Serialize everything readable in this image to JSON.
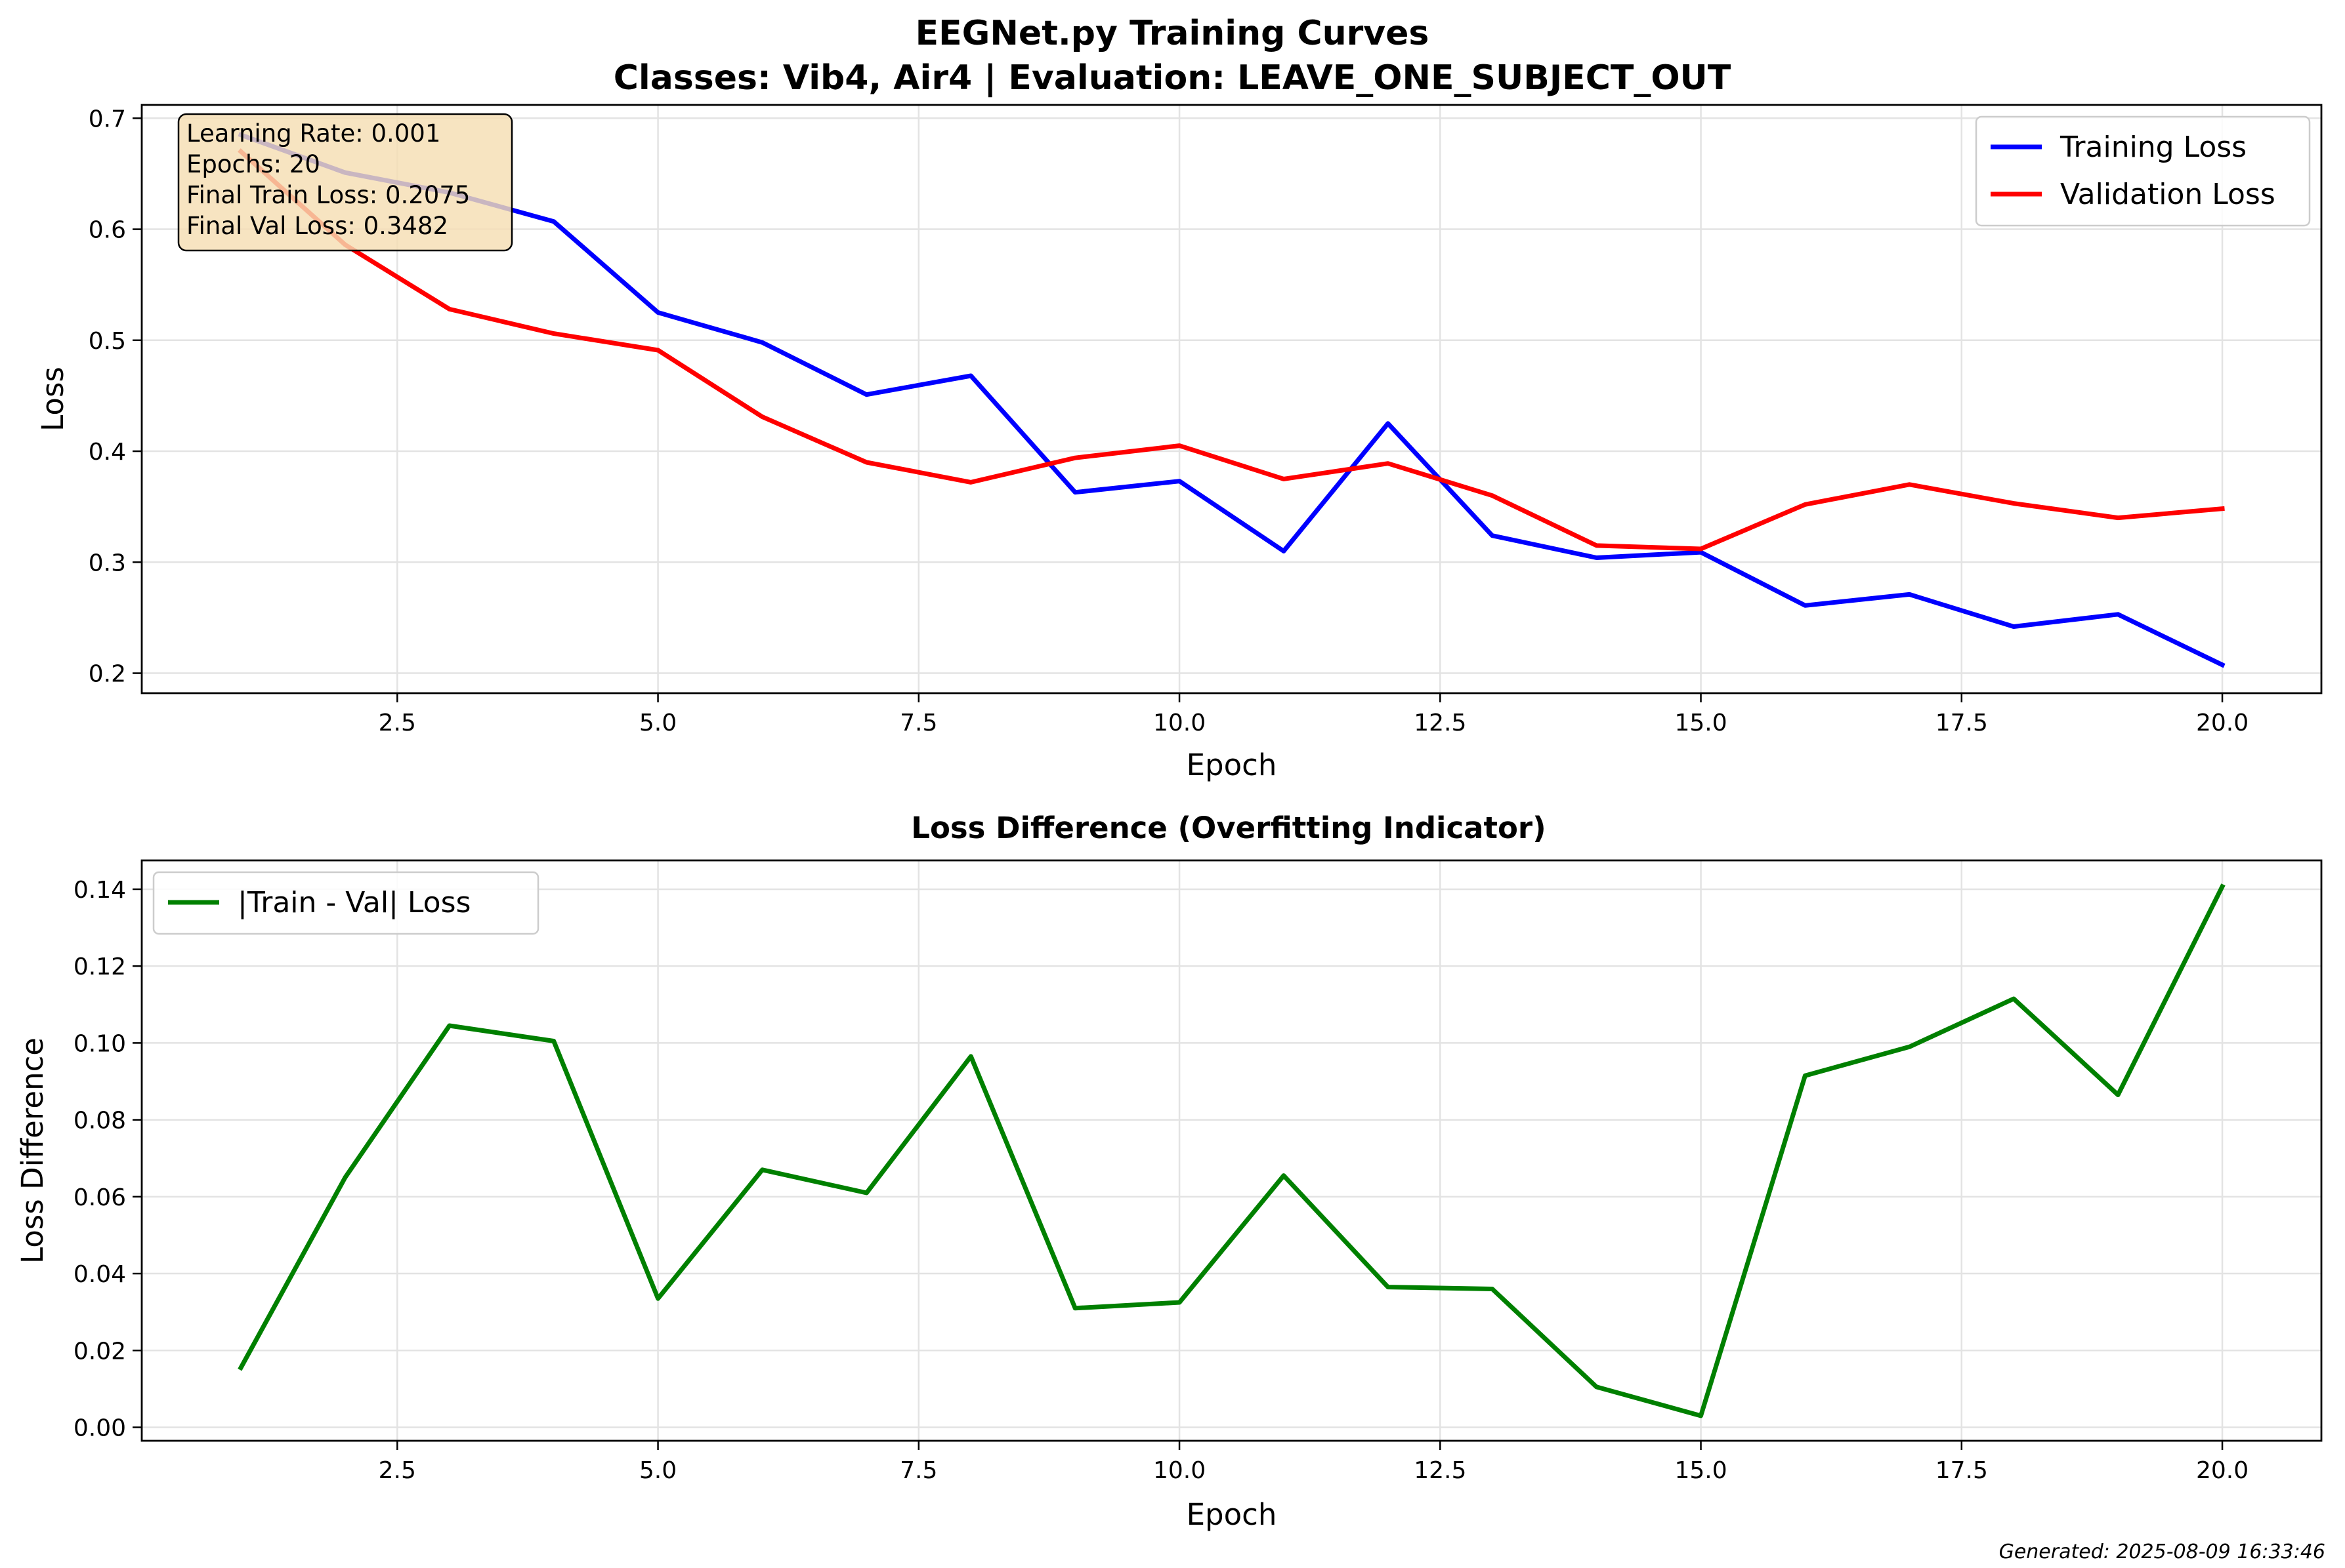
{
  "figure": {
    "title_line1": "EEGNet.py Training Curves",
    "title_line2": "Classes: Vib4, Air4 | Evaluation: LEAVE_ONE_SUBJECT_OUT",
    "footer": "Generated: 2025-08-09 16:33:46"
  },
  "info_box": {
    "lines": [
      "Learning Rate: 0.001",
      "Epochs: 20",
      "Final Train Loss: 0.2075",
      "Final Val Loss: 0.3482"
    ],
    "background": "#f5deb3"
  },
  "chart_data": [
    {
      "type": "line",
      "title": "",
      "xlabel": "Epoch",
      "ylabel": "Loss",
      "xlim": [
        0.05,
        20.95
      ],
      "ylim": [
        0.182,
        0.712
      ],
      "xticks": [
        2.5,
        5.0,
        7.5,
        10.0,
        12.5,
        15.0,
        17.5,
        20.0
      ],
      "xtick_labels": [
        "2.5",
        "5.0",
        "7.5",
        "10.0",
        "12.5",
        "15.0",
        "17.5",
        "20.0"
      ],
      "yticks": [
        0.2,
        0.3,
        0.4,
        0.5,
        0.6,
        0.7
      ],
      "ytick_labels": [
        "0.2",
        "0.3",
        "0.4",
        "0.5",
        "0.6",
        "0.7"
      ],
      "grid": true,
      "legend_position": "top-right",
      "x": [
        1,
        2,
        3,
        4,
        5,
        6,
        7,
        8,
        9,
        10,
        11,
        12,
        13,
        14,
        15,
        16,
        17,
        18,
        19,
        20
      ],
      "series": [
        {
          "name": "Training Loss",
          "color": "#0000ff",
          "values": [
            0.685,
            0.651,
            0.633,
            0.607,
            0.525,
            0.498,
            0.451,
            0.468,
            0.363,
            0.373,
            0.31,
            0.425,
            0.324,
            0.304,
            0.309,
            0.261,
            0.271,
            0.242,
            0.253,
            0.2075
          ]
        },
        {
          "name": "Validation Loss",
          "color": "#ff0000",
          "values": [
            0.67,
            0.586,
            0.528,
            0.506,
            0.491,
            0.431,
            0.39,
            0.372,
            0.394,
            0.405,
            0.375,
            0.389,
            0.36,
            0.315,
            0.312,
            0.352,
            0.37,
            0.353,
            0.34,
            0.3482
          ]
        }
      ]
    },
    {
      "type": "line",
      "title": "Loss Difference (Overfitting Indicator)",
      "xlabel": "Epoch",
      "ylabel": "Loss Difference",
      "xlim": [
        0.05,
        20.95
      ],
      "ylim": [
        -0.0035,
        0.1475
      ],
      "xticks": [
        2.5,
        5.0,
        7.5,
        10.0,
        12.5,
        15.0,
        17.5,
        20.0
      ],
      "xtick_labels": [
        "2.5",
        "5.0",
        "7.5",
        "10.0",
        "12.5",
        "15.0",
        "17.5",
        "20.0"
      ],
      "yticks": [
        0.0,
        0.02,
        0.04,
        0.06,
        0.08,
        0.1,
        0.12,
        0.14
      ],
      "ytick_labels": [
        "0.00",
        "0.02",
        "0.04",
        "0.06",
        "0.08",
        "0.10",
        "0.12",
        "0.14"
      ],
      "grid": true,
      "legend_position": "top-left",
      "x": [
        1,
        2,
        3,
        4,
        5,
        6,
        7,
        8,
        9,
        10,
        11,
        12,
        13,
        14,
        15,
        16,
        17,
        18,
        19,
        20
      ],
      "series": [
        {
          "name": "|Train - Val| Loss",
          "color": "#008000",
          "values": [
            0.0155,
            0.065,
            0.1045,
            0.1005,
            0.0335,
            0.067,
            0.061,
            0.0965,
            0.031,
            0.0325,
            0.0655,
            0.0365,
            0.036,
            0.0105,
            0.003,
            0.0915,
            0.099,
            0.1115,
            0.0865,
            0.1407
          ]
        }
      ]
    }
  ]
}
